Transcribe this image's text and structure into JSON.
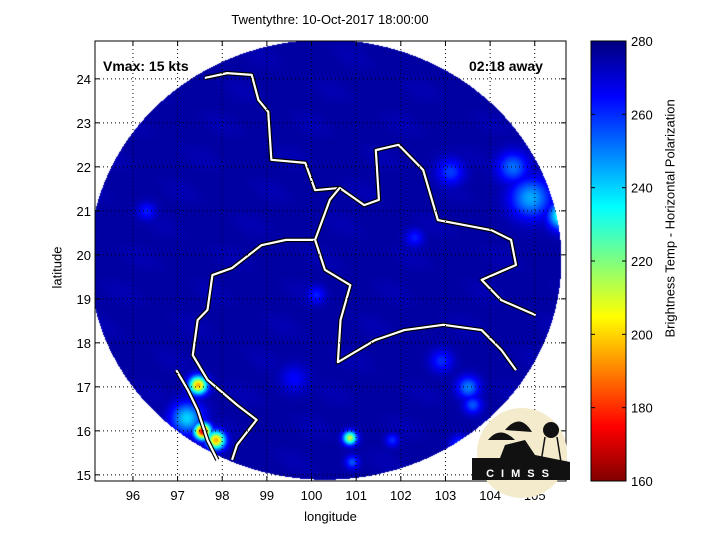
{
  "chart_data": {
    "type": "heatmap",
    "title": "Twentythre: 10-Oct-2017 18:00:00",
    "xlabel": "longitude",
    "ylabel": "latitude",
    "xlim": [
      95.15,
      105.7
    ],
    "ylim": [
      14.86,
      24.86
    ],
    "xticks": [
      96,
      97,
      98,
      99,
      100,
      101,
      102,
      103,
      104,
      105
    ],
    "yticks": [
      15,
      16,
      17,
      18,
      19,
      20,
      21,
      22,
      23,
      24
    ],
    "grid": true,
    "colorbar": {
      "label": "Brightness Temp - Horizontal Polarization",
      "range": [
        160,
        280
      ],
      "ticks": [
        160,
        180,
        200,
        220,
        240,
        260,
        280
      ],
      "colormap": "jet-reversed"
    },
    "background_value": 276,
    "swath_center": [
      100.3,
      19.9
    ],
    "hotspots": [
      {
        "lon": 97.45,
        "lat": 17.05,
        "value": 195,
        "spread": 0.2
      },
      {
        "lon": 97.55,
        "lat": 16.0,
        "value": 172,
        "spread": 0.18
      },
      {
        "lon": 97.85,
        "lat": 15.8,
        "value": 195,
        "spread": 0.2
      },
      {
        "lon": 97.2,
        "lat": 16.3,
        "value": 240,
        "spread": 0.35
      },
      {
        "lon": 100.85,
        "lat": 15.85,
        "value": 212,
        "spread": 0.15
      },
      {
        "lon": 105.6,
        "lat": 20.9,
        "value": 228,
        "spread": 0.3
      },
      {
        "lon": 104.9,
        "lat": 21.3,
        "value": 245,
        "spread": 0.45
      },
      {
        "lon": 104.5,
        "lat": 22.0,
        "value": 252,
        "spread": 0.35
      },
      {
        "lon": 103.1,
        "lat": 21.9,
        "value": 258,
        "spread": 0.3
      },
      {
        "lon": 103.5,
        "lat": 17.0,
        "value": 250,
        "spread": 0.25
      },
      {
        "lon": 103.6,
        "lat": 16.6,
        "value": 255,
        "spread": 0.2
      },
      {
        "lon": 102.9,
        "lat": 17.6,
        "value": 260,
        "spread": 0.25
      },
      {
        "lon": 96.3,
        "lat": 21.0,
        "value": 262,
        "spread": 0.2
      },
      {
        "lon": 99.6,
        "lat": 17.2,
        "value": 265,
        "spread": 0.3
      },
      {
        "lon": 100.1,
        "lat": 19.1,
        "value": 262,
        "spread": 0.2
      },
      {
        "lon": 102.3,
        "lat": 20.4,
        "value": 262,
        "spread": 0.2
      },
      {
        "lon": 101.8,
        "lat": 15.8,
        "value": 260,
        "spread": 0.15
      },
      {
        "lon": 103.3,
        "lat": 15.7,
        "value": 258,
        "spread": 0.2
      },
      {
        "lon": 100.9,
        "lat": 15.3,
        "value": 255,
        "spread": 0.15
      }
    ],
    "borders": [
      [
        [
          97.61,
          24.02
        ],
        [
          98.11,
          24.13
        ],
        [
          98.66,
          24.09
        ],
        [
          98.81,
          23.52
        ],
        [
          99.03,
          23.25
        ],
        [
          99.1,
          22.16
        ],
        [
          99.86,
          22.09
        ],
        [
          100.08,
          21.47
        ],
        [
          100.63,
          21.52
        ],
        [
          101.18,
          21.13
        ],
        [
          101.51,
          21.25
        ],
        [
          101.44,
          22.38
        ],
        [
          101.95,
          22.5
        ],
        [
          102.5,
          21.93
        ],
        [
          102.83,
          20.79
        ],
        [
          104.03,
          20.56
        ],
        [
          104.47,
          20.34
        ],
        [
          104.58,
          19.77
        ],
        [
          103.81,
          19.43
        ],
        [
          104.25,
          18.97
        ],
        [
          105.02,
          18.63
        ]
      ],
      [
        [
          100.63,
          21.52
        ],
        [
          100.41,
          21.25
        ],
        [
          100.08,
          20.34
        ],
        [
          99.43,
          20.34
        ],
        [
          98.88,
          20.22
        ],
        [
          98.22,
          19.7
        ],
        [
          97.78,
          19.54
        ],
        [
          97.67,
          18.75
        ],
        [
          97.45,
          18.52
        ],
        [
          97.34,
          17.72
        ],
        [
          97.67,
          17.16
        ],
        [
          98.33,
          16.59
        ],
        [
          98.77,
          16.25
        ],
        [
          98.33,
          15.68
        ],
        [
          98.22,
          15.34
        ]
      ],
      [
        [
          100.08,
          20.34
        ],
        [
          100.3,
          19.66
        ],
        [
          100.87,
          19.31
        ],
        [
          100.65,
          18.52
        ],
        [
          100.59,
          17.56
        ],
        [
          101.42,
          18.06
        ],
        [
          102.08,
          18.29
        ],
        [
          102.95,
          18.41
        ],
        [
          103.81,
          18.29
        ],
        [
          104.25,
          17.84
        ],
        [
          104.58,
          17.38
        ]
      ],
      [
        [
          96.97,
          17.38
        ],
        [
          97.23,
          16.93
        ],
        [
          97.45,
          16.47
        ],
        [
          97.67,
          15.79
        ],
        [
          97.89,
          15.34
        ]
      ]
    ]
  },
  "annotations": {
    "vmax": "Vmax: 15 kts",
    "away": "02:18 away"
  },
  "logo": {
    "text": "CIMSS"
  }
}
